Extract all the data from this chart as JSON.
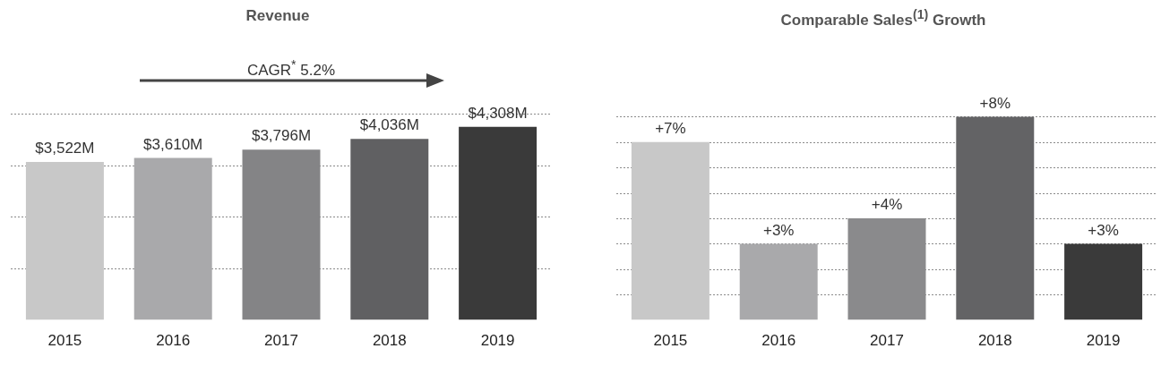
{
  "chart_data": [
    {
      "type": "bar",
      "title": "Revenue",
      "categories": [
        "2015",
        "2016",
        "2017",
        "2018",
        "2019"
      ],
      "values": [
        3522,
        3610,
        3796,
        4036,
        4308
      ],
      "colors": [
        "#c8c8c8",
        "#a9a9ab",
        "#848486",
        "#606062",
        "#3a3a3a"
      ],
      "value_labels": [
        "$3,522M",
        "$3,610M",
        "$3,796M",
        "$4,036M",
        "$4,308M"
      ],
      "yticks": [
        {
          "value": 1150,
          "label": null
        },
        {
          "value": 2300,
          "label": null
        },
        {
          "value": 3450,
          "label": null
        },
        {
          "value": 4600,
          "label": null
        }
      ],
      "grid": "y",
      "tick_labels": "x",
      "legend": false,
      "annotations": [
        "CAGR$^{*}$ 5.2%"
      ]
    },
    {
      "type": "bar",
      "title": "Comparable Sales$^{(1)}$ Growth",
      "categories": [
        "2015",
        "2016",
        "2017",
        "2018",
        "2019"
      ],
      "values": [
        7,
        3,
        4,
        8,
        3
      ],
      "colors": [
        "#c8c8c8",
        "#a9a9ab",
        "#8a8a8c",
        "#636365",
        "#3a3a3a"
      ],
      "value_labels": [
        "+7%",
        "+3%",
        "+4%",
        "+8%",
        "+3%"
      ],
      "yticks": [
        {
          "value": 1,
          "label": null
        },
        {
          "value": 2,
          "label": null
        },
        {
          "value": 3,
          "label": null
        },
        {
          "value": 4,
          "label": null
        },
        {
          "value": 5,
          "label": null
        },
        {
          "value": 6,
          "label": null
        },
        {
          "value": 7,
          "label": null
        },
        {
          "value": 8,
          "label": null
        }
      ],
      "grid": "y",
      "tick_labels": "x",
      "legend": false
    }
  ]
}
